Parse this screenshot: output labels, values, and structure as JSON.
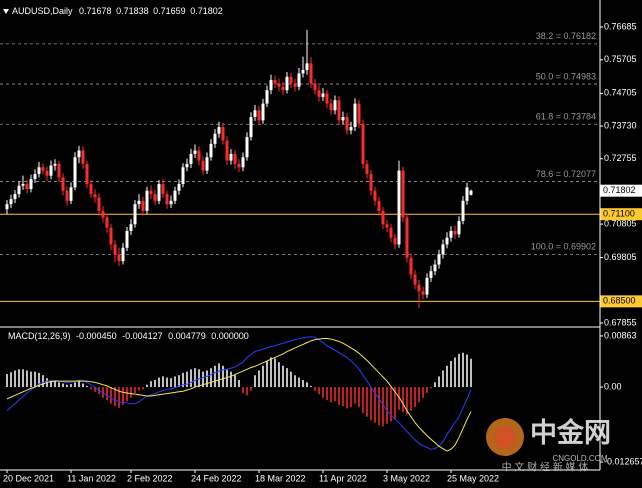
{
  "chart_data": [
    {
      "type": "candlestick",
      "title": "AUDUSD,Daily",
      "open": [
        0.7125,
        0.714,
        0.7155,
        0.717,
        0.7195,
        0.72,
        0.7185,
        0.7215,
        0.723,
        0.725,
        0.724,
        0.7225,
        0.7255,
        0.726,
        0.722,
        0.718,
        0.715,
        0.719,
        0.728,
        0.73,
        0.726,
        0.72,
        0.717,
        0.716,
        0.712,
        0.71,
        0.707,
        0.702,
        0.699,
        0.697,
        0.701,
        0.706,
        0.708,
        0.714,
        0.715,
        0.712,
        0.718,
        0.717,
        0.715,
        0.72,
        0.717,
        0.714,
        0.715,
        0.718,
        0.72,
        0.725,
        0.726,
        0.729,
        0.73,
        0.727,
        0.724,
        0.728,
        0.732,
        0.735,
        0.737,
        0.733,
        0.727,
        0.729,
        0.726,
        0.725,
        0.728,
        0.734,
        0.74,
        0.742,
        0.739,
        0.744,
        0.748,
        0.751,
        0.75,
        0.749,
        0.748,
        0.752,
        0.75,
        0.749,
        0.753,
        0.754,
        0.756,
        0.75,
        0.748,
        0.746,
        0.747,
        0.744,
        0.742,
        0.745,
        0.739,
        0.74,
        0.736,
        0.737,
        0.744,
        0.738,
        0.726,
        0.723,
        0.718,
        0.715,
        0.712,
        0.708,
        0.707,
        0.704,
        0.702,
        0.724,
        0.71,
        0.698,
        0.693,
        0.69,
        0.688,
        0.687,
        0.692,
        0.694,
        0.696,
        0.699,
        0.702,
        0.704,
        0.706,
        0.705,
        0.709,
        0.715,
        0.71678
      ],
      "high": [
        0.7152,
        0.7168,
        0.7182,
        0.7208,
        0.7225,
        0.7214,
        0.7228,
        0.7244,
        0.7266,
        0.7262,
        0.7252,
        0.727,
        0.7274,
        0.727,
        0.7232,
        0.7193,
        0.7205,
        0.7295,
        0.7314,
        0.7312,
        0.727,
        0.7212,
        0.7185,
        0.7172,
        0.7134,
        0.7112,
        0.7082,
        0.7032,
        0.701,
        0.7024,
        0.7072,
        0.7095,
        0.7152,
        0.717,
        0.7162,
        0.7192,
        0.7196,
        0.7182,
        0.7212,
        0.7215,
        0.718,
        0.7166,
        0.7192,
        0.7214,
        0.7262,
        0.7276,
        0.7305,
        0.7318,
        0.7312,
        0.7282,
        0.7294,
        0.7334,
        0.7364,
        0.7386,
        0.7382,
        0.7342,
        0.7304,
        0.7302,
        0.7274,
        0.7294,
        0.7354,
        0.7414,
        0.7436,
        0.7434,
        0.7454,
        0.7494,
        0.7526,
        0.7524,
        0.7514,
        0.7504,
        0.7534,
        0.7532,
        0.7514,
        0.7546,
        0.758,
        0.766,
        0.7578,
        0.7514,
        0.7494,
        0.7486,
        0.7482,
        0.7454,
        0.7464,
        0.7462,
        0.7416,
        0.7412,
        0.7386,
        0.7456,
        0.7452,
        0.7392,
        0.7272,
        0.7242,
        0.7192,
        0.7162,
        0.7132,
        0.7094,
        0.7082,
        0.7052,
        0.727,
        0.7252,
        0.7112,
        0.6992,
        0.6944,
        0.6914,
        0.6894,
        0.6934,
        0.6956,
        0.6974,
        0.7004,
        0.7034,
        0.7056,
        0.7074,
        0.7076,
        0.7104,
        0.7164,
        0.7204,
        0.71838
      ],
      "low": [
        0.711,
        0.7128,
        0.7143,
        0.716,
        0.7183,
        0.7172,
        0.7175,
        0.7203,
        0.722,
        0.7228,
        0.721,
        0.7214,
        0.724,
        0.7205,
        0.7166,
        0.7136,
        0.714,
        0.7182,
        0.7262,
        0.7246,
        0.7188,
        0.7158,
        0.7145,
        0.7105,
        0.7086,
        0.7055,
        0.7004,
        0.6967,
        0.6955,
        0.696,
        0.7,
        0.7048,
        0.707,
        0.7126,
        0.7106,
        0.711,
        0.7155,
        0.7138,
        0.714,
        0.7158,
        0.7126,
        0.7128,
        0.714,
        0.7168,
        0.719,
        0.7238,
        0.7248,
        0.7278,
        0.7256,
        0.7228,
        0.723,
        0.727,
        0.7308,
        0.7338,
        0.7318,
        0.7256,
        0.7258,
        0.7246,
        0.7236,
        0.7238,
        0.727,
        0.733,
        0.7388,
        0.7376,
        0.738,
        0.743,
        0.7468,
        0.7486,
        0.7476,
        0.7466,
        0.747,
        0.7486,
        0.7476,
        0.748,
        0.7518,
        0.7526,
        0.7486,
        0.7466,
        0.7446,
        0.7448,
        0.7426,
        0.7406,
        0.7408,
        0.7376,
        0.7378,
        0.7346,
        0.7348,
        0.7358,
        0.7366,
        0.7246,
        0.7216,
        0.7166,
        0.7136,
        0.7106,
        0.7066,
        0.7056,
        0.7026,
        0.7006,
        0.701,
        0.7086,
        0.6966,
        0.6916,
        0.6886,
        0.683,
        0.6856,
        0.686,
        0.6908,
        0.6928,
        0.6948,
        0.6978,
        0.7008,
        0.7028,
        0.7036,
        0.704,
        0.708,
        0.7138,
        0.71659
      ],
      "close": [
        0.714,
        0.7155,
        0.717,
        0.7195,
        0.72,
        0.7185,
        0.7215,
        0.723,
        0.725,
        0.724,
        0.7225,
        0.7255,
        0.726,
        0.722,
        0.718,
        0.715,
        0.719,
        0.728,
        0.73,
        0.726,
        0.72,
        0.717,
        0.716,
        0.712,
        0.71,
        0.707,
        0.702,
        0.699,
        0.697,
        0.701,
        0.706,
        0.708,
        0.714,
        0.715,
        0.712,
        0.718,
        0.717,
        0.715,
        0.72,
        0.717,
        0.714,
        0.715,
        0.718,
        0.72,
        0.725,
        0.726,
        0.729,
        0.73,
        0.727,
        0.724,
        0.728,
        0.732,
        0.735,
        0.737,
        0.733,
        0.727,
        0.729,
        0.726,
        0.725,
        0.728,
        0.734,
        0.74,
        0.742,
        0.739,
        0.744,
        0.748,
        0.751,
        0.75,
        0.749,
        0.748,
        0.752,
        0.75,
        0.749,
        0.753,
        0.754,
        0.756,
        0.75,
        0.748,
        0.746,
        0.747,
        0.744,
        0.742,
        0.745,
        0.739,
        0.74,
        0.736,
        0.737,
        0.744,
        0.738,
        0.726,
        0.723,
        0.718,
        0.715,
        0.712,
        0.708,
        0.707,
        0.704,
        0.702,
        0.724,
        0.71,
        0.698,
        0.693,
        0.69,
        0.688,
        0.687,
        0.692,
        0.694,
        0.696,
        0.699,
        0.702,
        0.704,
        0.706,
        0.705,
        0.709,
        0.715,
        0.719,
        0.71802
      ],
      "up_color": "#ffffff",
      "down_color": "#ff2a2a",
      "xlim": [
        -1.75,
        148.25
      ],
      "xticks": [
        {
          "value": 0,
          "label": "20 Dec 2021"
        },
        {
          "value": 16,
          "label": "11 Jan 2022"
        },
        {
          "value": 31,
          "label": "2 Feb 2022"
        },
        {
          "value": 47,
          "label": "24 Feb 2022"
        },
        {
          "value": 63,
          "label": "18 Mar 2022"
        },
        {
          "value": 79,
          "label": "11 Apr 2022"
        },
        {
          "value": 95,
          "label": "3 May 2022"
        },
        {
          "value": 111,
          "label": "25 May 2022"
        }
      ],
      "ylim": [
        0.67795,
        0.77341
      ],
      "yticks": [
        0.76685,
        0.75705,
        0.74705,
        {
          "value": 0.7373,
          "label": "0.73730"
        },
        0.72755,
        0.70805,
        0.69805,
        0.67855
      ],
      "fib_levels": [
        {
          "label": "38.2 = 0.76182",
          "value": 0.76182
        },
        {
          "label": "50.0 = 0.74983",
          "value": 0.74983
        },
        {
          "label": "61.8 = 0.73784",
          "value": 0.73784
        },
        {
          "label": "78.6 = 0.72077",
          "value": 0.72077
        },
        {
          "label": "100.0 = 0.69902",
          "value": 0.69902
        }
      ],
      "fib_color": "#9a9a9a",
      "hlines": [
        {
          "value": 0.711,
          "label": "0.71100"
        },
        {
          "value": 0.685,
          "label": "0.68500"
        }
      ],
      "hline_color": "#ffc930",
      "last_price": 0.71802
    },
    {
      "type": "macd",
      "title": "MACD(12,26,9)",
      "header_values": [
        {
          "value": -0.00045,
          "label": "-0.000450"
        },
        {
          "value": -0.004127,
          "label": "-0.004127"
        },
        {
          "value": 0.004779,
          "label": "0.004779"
        },
        {
          "value": 0,
          "label": "0.000000"
        }
      ],
      "histogram": [
        0.0022,
        0.0025,
        0.0028,
        0.003,
        0.003,
        0.0028,
        0.0026,
        0.0026,
        0.0024,
        0.002,
        0.0015,
        0.0012,
        0.001,
        0.0008,
        0.0006,
        0.0004,
        0.0005,
        0.0008,
        0.001,
        0.0006,
        0.0002,
        -0.0004,
        -0.0008,
        -0.0012,
        -0.0018,
        -0.0022,
        -0.0028,
        -0.0032,
        -0.0035,
        -0.003,
        -0.0024,
        -0.0018,
        -0.001,
        -0.0006,
        -0.0004,
        0.0004,
        0.001,
        0.0012,
        0.0016,
        0.0018,
        0.0016,
        0.0015,
        0.0018,
        0.002,
        0.0024,
        0.0026,
        0.003,
        0.0032,
        0.003,
        0.0026,
        0.0028,
        0.0032,
        0.0036,
        0.004,
        0.0036,
        0.003,
        0.0026,
        0.002,
        0.0012,
        -0.001,
        -0.0014,
        -0.0006,
        0.002,
        0.0028,
        0.0036,
        0.0044,
        0.005,
        0.0048,
        0.0042,
        0.0036,
        0.0032,
        0.0026,
        0.002,
        0.0016,
        0.0012,
        0.0008,
        0.0002,
        -0.0006,
        -0.0012,
        -0.0018,
        -0.0022,
        -0.0026,
        -0.0024,
        -0.003,
        -0.0032,
        -0.0036,
        -0.0034,
        -0.0028,
        -0.0034,
        -0.0044,
        -0.005,
        -0.0056,
        -0.006,
        -0.0064,
        -0.0066,
        -0.0062,
        -0.0058,
        -0.0054,
        -0.0038,
        -0.0042,
        -0.0046,
        -0.004,
        -0.0034,
        -0.0026,
        -0.0018,
        -0.001,
        -0.0002,
        0.0008,
        0.0018,
        0.0028,
        0.0036,
        0.0044,
        0.005,
        0.0056,
        0.0058,
        0.0055,
        0.004779
      ],
      "up_color": "#ffffff",
      "down_color": "#ff2a2a",
      "series": [
        {
          "color": "#2a3cff",
          "values": [
            -0.004,
            -0.0034,
            -0.0028,
            -0.0022,
            -0.0016,
            -0.001,
            -0.0005,
            0.0,
            0.0005,
            0.0008,
            0.001,
            0.0011,
            0.0011,
            0.001,
            0.0009,
            0.0008,
            0.0008,
            0.001,
            0.0012,
            0.0011,
            0.0008,
            0.0004,
            0.0,
            -0.0005,
            -0.001,
            -0.0014,
            -0.0018,
            -0.0022,
            -0.0025,
            -0.0026,
            -0.0027,
            -0.0028,
            -0.0028,
            -0.0025,
            -0.002,
            -0.0015,
            -0.0013,
            -0.0011,
            -0.0008,
            -0.0006,
            -0.0004,
            -0.0003,
            -0.0001,
            0.0002,
            0.0004,
            0.0005,
            0.0008,
            0.0011,
            0.0014,
            0.0016,
            0.0018,
            0.0021,
            0.0024,
            0.0027,
            0.0029,
            0.003,
            0.0032,
            0.0034,
            0.0038,
            0.0042,
            0.005,
            0.0055,
            0.006,
            0.0062,
            0.0064,
            0.0066,
            0.0068,
            0.007,
            0.0072,
            0.0074,
            0.0076,
            0.0078,
            0.008,
            0.0081,
            0.0083,
            0.0084,
            0.0085,
            0.0084,
            0.008,
            0.0075,
            0.007,
            0.0066,
            0.0062,
            0.0058,
            0.0054,
            0.005,
            0.0044,
            0.0038,
            0.003,
            0.002,
            0.001,
            0.0,
            -0.001,
            -0.002,
            -0.003,
            -0.004,
            -0.0047,
            -0.0054,
            -0.006,
            -0.0068,
            -0.0075,
            -0.0082,
            -0.0089,
            -0.0095,
            -0.0099,
            -0.0102,
            -0.0105,
            -0.0104,
            -0.01,
            -0.0092,
            -0.008,
            -0.007,
            -0.006,
            -0.005,
            -0.0035,
            -0.002,
            -0.00045
          ]
        },
        {
          "color": "#f2e94e",
          "values": [
            -0.002,
            -0.0017,
            -0.0014,
            -0.0011,
            -0.0008,
            -0.0005,
            -0.0002,
            0.0,
            0.0003,
            0.0005,
            0.0008,
            0.0009,
            0.001,
            0.001,
            0.001,
            0.001,
            0.001,
            0.001,
            0.001,
            0.001,
            0.001,
            0.0009,
            0.0008,
            0.0006,
            0.0004,
            0.0002,
            -0.0001,
            -0.0004,
            -0.0007,
            -0.0009,
            -0.001,
            -0.0011,
            -0.0012,
            -0.0013,
            -0.0014,
            -0.0015,
            -0.0015,
            -0.0014,
            -0.0013,
            -0.0012,
            -0.0011,
            -0.001,
            -0.0009,
            -0.0008,
            -0.0007,
            -0.0005,
            -0.0003,
            0.0,
            0.0002,
            0.0004,
            0.0006,
            0.0008,
            0.001,
            0.0012,
            0.0014,
            0.0016,
            0.0018,
            0.0021,
            0.0024,
            0.0027,
            0.003,
            0.0033,
            0.0035,
            0.0038,
            0.0041,
            0.0044,
            0.0047,
            0.005,
            0.0053,
            0.0056,
            0.006,
            0.0063,
            0.0066,
            0.0069,
            0.0072,
            0.0075,
            0.0078,
            0.008,
            0.0081,
            0.0082,
            0.0082,
            0.0081,
            0.0079,
            0.0077,
            0.0074,
            0.007,
            0.0066,
            0.0062,
            0.0057,
            0.0051,
            0.0045,
            0.0038,
            0.0031,
            0.0024,
            0.0017,
            0.001,
            0.0001,
            -0.0008,
            -0.0017,
            -0.0028,
            -0.004,
            -0.005,
            -0.006,
            -0.0068,
            -0.0075,
            -0.0082,
            -0.0088,
            -0.0094,
            -0.01,
            -0.0104,
            -0.0108,
            -0.0105,
            -0.0098,
            -0.0085,
            -0.007,
            -0.0055,
            -0.004127
          ]
        }
      ],
      "ylim": [
        -0.014,
        0.0098
      ],
      "yticks": [
        0.00863,
        {
          "value": 0,
          "label": "0.00"
        },
        -0.012657
      ]
    }
  ],
  "watermark": {
    "logo": "中金网",
    "site": "CNGOLD.COM",
    "slogan": "中 文 财 经 新 媒 体"
  }
}
